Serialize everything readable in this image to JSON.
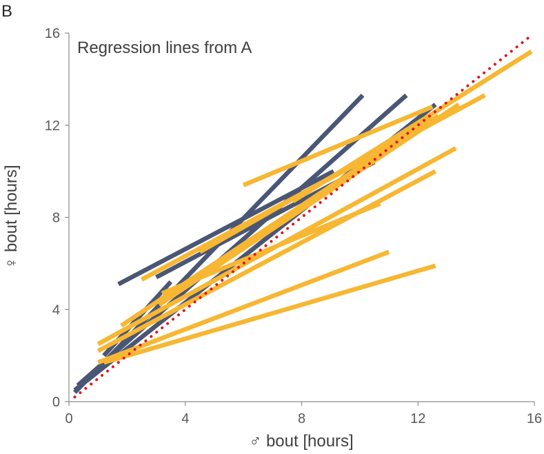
{
  "panel_label": "B",
  "chart_data": {
    "type": "line",
    "annotation": "Regression lines from A",
    "xlabel": "♂ bout [hours]",
    "ylabel": "♀ bout [hours]",
    "xlim": [
      0,
      16
    ],
    "ylim": [
      0,
      16
    ],
    "xticks": [
      "0",
      "4",
      "8",
      "12",
      "16"
    ],
    "yticks": [
      "0",
      "4",
      "8",
      "12",
      "16"
    ],
    "grid": false,
    "colors": {
      "dark": "#4a5675",
      "orange": "#f7b733",
      "identity": "#e3121b"
    },
    "identity_line": {
      "x": [
        0.2,
        15.9
      ],
      "y": [
        0.2,
        15.9
      ]
    },
    "series": [
      {
        "color": "dark",
        "x": [
          0.2,
          12.6
        ],
        "y": [
          0.5,
          12.9
        ]
      },
      {
        "color": "dark",
        "x": [
          0.3,
          11.6
        ],
        "y": [
          0.7,
          13.3
        ]
      },
      {
        "color": "dark",
        "x": [
          0.2,
          10.1
        ],
        "y": [
          0.4,
          13.3
        ]
      },
      {
        "color": "dark",
        "x": [
          1.7,
          9.1
        ],
        "y": [
          5.1,
          10.0
        ]
      },
      {
        "color": "dark",
        "x": [
          3.0,
          10.5
        ],
        "y": [
          5.4,
          10.4
        ]
      },
      {
        "color": "dark",
        "x": [
          1.2,
          3.5
        ],
        "y": [
          2.0,
          5.2
        ]
      },
      {
        "color": "orange",
        "x": [
          6.0,
          12.5
        ],
        "y": [
          9.4,
          12.8
        ]
      },
      {
        "color": "orange",
        "x": [
          3.1,
          13.4
        ],
        "y": [
          4.2,
          12.9
        ]
      },
      {
        "color": "orange",
        "x": [
          2.5,
          14.3
        ],
        "y": [
          5.3,
          13.3
        ]
      },
      {
        "color": "orange",
        "x": [
          7.7,
          15.9
        ],
        "y": [
          8.7,
          15.2
        ]
      },
      {
        "color": "orange",
        "x": [
          4.5,
          12.7
        ],
        "y": [
          6.5,
          12.4
        ]
      },
      {
        "color": "orange",
        "x": [
          1.8,
          12.5
        ],
        "y": [
          3.3,
          12.3
        ]
      },
      {
        "color": "orange",
        "x": [
          1.0,
          13.3
        ],
        "y": [
          2.5,
          11.0
        ]
      },
      {
        "color": "orange",
        "x": [
          1.0,
          12.6
        ],
        "y": [
          2.2,
          10.0
        ]
      },
      {
        "color": "orange",
        "x": [
          3.2,
          10.7
        ],
        "y": [
          4.7,
          8.6
        ]
      },
      {
        "color": "orange",
        "x": [
          1.0,
          11.0
        ],
        "y": [
          1.7,
          6.5
        ]
      },
      {
        "color": "orange",
        "x": [
          1.2,
          12.6
        ],
        "y": [
          1.7,
          5.9
        ]
      }
    ]
  }
}
